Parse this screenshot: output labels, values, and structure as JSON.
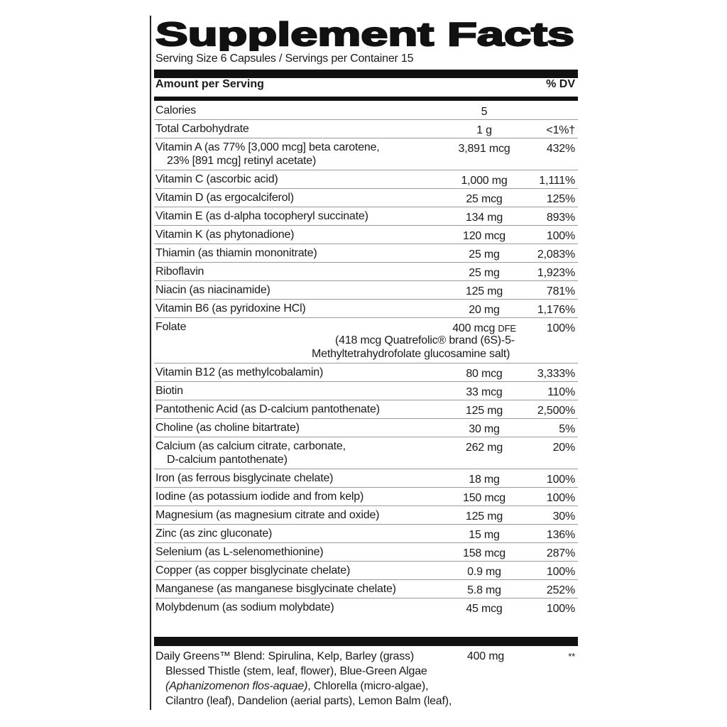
{
  "title": "Supplement Facts",
  "serving": "Serving Size 6 Capsules / Servings per Container 15",
  "header": {
    "amount": "Amount per Serving",
    "dv": "% DV"
  },
  "rows": [
    {
      "name": [
        "Calories"
      ],
      "amount": "5",
      "dv": ""
    },
    {
      "name": [
        "Total Carbohydrate"
      ],
      "amount": "1 g",
      "dv": "<1%†"
    },
    {
      "name": [
        "Vitamin A (as 77% [3,000 mcg] beta carotene,",
        "23% [891 mcg] retinyl acetate)"
      ],
      "amount": "3,891 mcg",
      "dv": "432%"
    },
    {
      "name": [
        "Vitamin C (ascorbic acid)"
      ],
      "amount": "1,000 mg",
      "dv": "1,111%"
    },
    {
      "name": [
        "Vitamin D (as ergocalciferol)"
      ],
      "amount": "25 mcg",
      "dv": "125%"
    },
    {
      "name": [
        "Vitamin E (as d-alpha tocopheryl succinate)"
      ],
      "amount": "134 mg",
      "dv": "893%"
    },
    {
      "name": [
        "Vitamin K (as phytonadione)"
      ],
      "amount": "120 mcg",
      "dv": "100%"
    },
    {
      "name": [
        "Thiamin (as thiamin mononitrate)"
      ],
      "amount": "25 mg",
      "dv": "2,083%"
    },
    {
      "name": [
        "Riboflavin"
      ],
      "amount": "25 mg",
      "dv": "1,923%"
    },
    {
      "name": [
        "Niacin (as niacinamide)"
      ],
      "amount": "125 mg",
      "dv": "781%"
    },
    {
      "name": [
        "Vitamin B6 (as pyridoxine HCl)"
      ],
      "amount": "20 mg",
      "dv": "1,176%"
    },
    {
      "name": [
        "Folate"
      ],
      "amount": "400 mcg",
      "amount_suffix": "DFE",
      "dv": "100%",
      "note": [
        "(418 mcg Quatrefolic® brand (6S)-5-",
        "Methyltetrahydrofolate glucosamine salt)"
      ]
    },
    {
      "name": [
        "Vitamin B12 (as methylcobalamin)"
      ],
      "amount": "80 mcg",
      "dv": "3,333%"
    },
    {
      "name": [
        "Biotin"
      ],
      "amount": "33 mcg",
      "dv": "110%"
    },
    {
      "name": [
        "Pantothenic Acid (as D-calcium pantothenate)"
      ],
      "amount": "125 mg",
      "dv": "2,500%"
    },
    {
      "name": [
        "Choline (as choline bitartrate)"
      ],
      "amount": "30 mg",
      "dv": "5%"
    },
    {
      "name": [
        "Calcium (as calcium citrate, carbonate,",
        "D-calcium pantothenate)"
      ],
      "amount": "262 mg",
      "dv": "20%"
    },
    {
      "name": [
        "Iron (as ferrous bisglycinate chelate)"
      ],
      "amount": "18 mg",
      "dv": "100%"
    },
    {
      "name": [
        "Iodine (as potassium iodide and from kelp)"
      ],
      "amount": "150 mcg",
      "dv": "100%"
    },
    {
      "name": [
        "Magnesium (as magnesium citrate and oxide)"
      ],
      "amount": "125 mg",
      "dv": "30%"
    },
    {
      "name": [
        "Zinc (as zinc gluconate)"
      ],
      "amount": "15 mg",
      "dv": "136%"
    },
    {
      "name": [
        "Selenium (as L-selenomethionine)"
      ],
      "amount": "158 mcg",
      "dv": "287%"
    },
    {
      "name": [
        "Copper (as copper bisglycinate chelate)"
      ],
      "amount": "0.9 mg",
      "dv": "100%"
    },
    {
      "name": [
        "Manganese (as manganese bisglycinate chelate)"
      ],
      "amount": "5.8 mg",
      "dv": "252%"
    },
    {
      "name": [
        "Molybdenum (as sodium molybdate)"
      ],
      "amount": "45 mcg",
      "dv": "100%"
    }
  ],
  "blend": {
    "name": "Daily Greens™ Blend: Spirulina, Kelp, Barley (grass)",
    "amount": "400 mg",
    "dv": "**",
    "lines": [
      "Blessed Thistle (stem, leaf, flower), Blue-Green Algae",
      "Cilantro (leaf), Dandelion (aerial parts), Lemon Balm (leaf),"
    ],
    "italic": "(Aphanizomenon flos-aquae)",
    "italic_rest": ", Chlorella (micro-algae),"
  }
}
